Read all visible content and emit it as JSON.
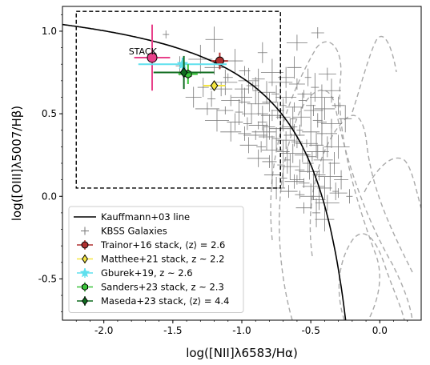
{
  "chart_data": {
    "type": "scatter",
    "xlabel": "log([NII]λ6583/Hα)",
    "ylabel": "log([OIII]λ5007/Hβ)",
    "xlim": [
      -2.3,
      0.3
    ],
    "ylim": [
      -0.75,
      1.15
    ],
    "x_ticks": [
      -2.0,
      -1.5,
      -1.0,
      -0.5,
      0.0
    ],
    "x_tick_labels": [
      "-2.0",
      "-1.5",
      "-1.0",
      "-0.5",
      "0.0"
    ],
    "y_ticks": [
      -0.5,
      0.0,
      0.5,
      1.0
    ],
    "y_tick_labels": [
      "-0.5",
      "0.0",
      "0.5",
      "1.0"
    ],
    "grid": false,
    "legend_position": "bottom-left",
    "kauffmann_line": {
      "name": "Kauffmann+03 line",
      "color": "#000000"
    },
    "selection_box": {
      "x": [
        -2.2,
        -0.72
      ],
      "y": [
        0.05,
        1.12
      ]
    },
    "annotations": [
      {
        "text": "STACK",
        "x": -1.82,
        "y": 0.86
      }
    ],
    "kbss": {
      "name": "KBSS Galaxies",
      "color": "#777777",
      "points": [
        [
          -1.55,
          0.98
        ],
        [
          -1.2,
          0.95
        ],
        [
          -0.85,
          0.87
        ],
        [
          -0.6,
          0.93
        ],
        [
          -0.45,
          0.99
        ],
        [
          -1.3,
          0.83
        ],
        [
          -1.05,
          0.82
        ],
        [
          -1.45,
          0.79
        ],
        [
          -1.2,
          0.78
        ],
        [
          -0.98,
          0.76
        ],
        [
          -0.78,
          0.75
        ],
        [
          -0.62,
          0.78
        ],
        [
          -0.52,
          0.72
        ],
        [
          -0.38,
          0.74
        ],
        [
          -1.1,
          0.72
        ],
        [
          -0.95,
          0.7
        ],
        [
          -0.88,
          0.71
        ],
        [
          -0.72,
          0.69
        ],
        [
          -0.6,
          0.68
        ],
        [
          -0.47,
          0.66
        ],
        [
          -0.35,
          0.64
        ],
        [
          -1.28,
          0.66
        ],
        [
          -1.15,
          0.65
        ],
        [
          -1.0,
          0.65
        ],
        [
          -0.9,
          0.64
        ],
        [
          -0.82,
          0.63
        ],
        [
          -0.75,
          0.62
        ],
        [
          -0.68,
          0.6
        ],
        [
          -0.55,
          0.62
        ],
        [
          -0.42,
          0.6
        ],
        [
          -1.35,
          0.6
        ],
        [
          -1.22,
          0.59
        ],
        [
          -1.08,
          0.58
        ],
        [
          -0.98,
          0.57
        ],
        [
          -0.88,
          0.56
        ],
        [
          -0.8,
          0.57
        ],
        [
          -0.7,
          0.55
        ],
        [
          -0.62,
          0.54
        ],
        [
          -0.5,
          0.55
        ],
        [
          -0.4,
          0.53
        ],
        [
          -0.3,
          0.55
        ],
        [
          -1.25,
          0.53
        ],
        [
          -1.12,
          0.52
        ],
        [
          -1.02,
          0.51
        ],
        [
          -0.93,
          0.5
        ],
        [
          -0.85,
          0.5
        ],
        [
          -0.78,
          0.49
        ],
        [
          -0.7,
          0.48
        ],
        [
          -0.63,
          0.47
        ],
        [
          -0.57,
          0.48
        ],
        [
          -0.45,
          0.46
        ],
        [
          -0.35,
          0.44
        ],
        [
          -0.25,
          0.47
        ],
        [
          -1.18,
          0.46
        ],
        [
          -1.05,
          0.45
        ],
        [
          -0.96,
          0.44
        ],
        [
          -0.88,
          0.43
        ],
        [
          -0.8,
          0.42
        ],
        [
          -0.72,
          0.41
        ],
        [
          -0.65,
          0.42
        ],
        [
          -0.58,
          0.4
        ],
        [
          -0.5,
          0.39
        ],
        [
          -0.42,
          0.38
        ],
        [
          -1.08,
          0.39
        ],
        [
          -0.98,
          0.38
        ],
        [
          -0.9,
          0.37
        ],
        [
          -0.82,
          0.36
        ],
        [
          -0.75,
          0.35
        ],
        [
          -0.68,
          0.34
        ],
        [
          -0.6,
          0.33
        ],
        [
          -0.53,
          0.32
        ],
        [
          -0.46,
          0.31
        ],
        [
          -0.38,
          0.3
        ],
        [
          -0.95,
          0.31
        ],
        [
          -0.86,
          0.3
        ],
        [
          -0.78,
          0.28
        ],
        [
          -0.7,
          0.27
        ],
        [
          -0.63,
          0.26
        ],
        [
          -0.56,
          0.25
        ],
        [
          -0.49,
          0.24
        ],
        [
          -0.41,
          0.22
        ],
        [
          -0.33,
          0.2
        ],
        [
          -0.88,
          0.23
        ],
        [
          -0.8,
          0.21
        ],
        [
          -0.72,
          0.19
        ],
        [
          -0.65,
          0.18
        ],
        [
          -0.58,
          0.16
        ],
        [
          -0.51,
          0.15
        ],
        [
          -0.44,
          0.13
        ],
        [
          -0.36,
          0.12
        ],
        [
          -0.78,
          0.13
        ],
        [
          -0.7,
          0.11
        ],
        [
          -0.62,
          0.09
        ],
        [
          -0.55,
          0.08
        ],
        [
          -0.48,
          0.06
        ],
        [
          -0.4,
          0.05
        ],
        [
          -0.32,
          0.03
        ],
        [
          -0.66,
          0.03
        ],
        [
          -0.58,
          0.01
        ],
        [
          -0.5,
          0.0
        ],
        [
          -0.44,
          -0.02
        ],
        [
          -0.38,
          -0.04
        ],
        [
          -0.55,
          -0.07
        ],
        [
          -0.46,
          -0.1
        ],
        [
          -0.4,
          -0.14
        ],
        [
          -0.52,
          0.2
        ],
        [
          -0.45,
          0.27
        ],
        [
          -0.6,
          0.1
        ],
        [
          -0.67,
          0.22
        ],
        [
          -0.75,
          0.05
        ],
        [
          -0.85,
          0.45
        ],
        [
          -1.0,
          0.6
        ],
        [
          -0.92,
          0.67
        ],
        [
          -1.12,
          0.69
        ],
        [
          -0.68,
          0.72
        ],
        [
          -0.56,
          0.58
        ],
        [
          -0.48,
          0.52
        ],
        [
          -0.35,
          0.38
        ],
        [
          -0.3,
          0.3
        ],
        [
          -0.28,
          0.1
        ],
        [
          -0.22,
          0.0
        ],
        [
          -0.3,
          0.02
        ],
        [
          -0.42,
          0.45
        ],
        [
          -0.62,
          0.37
        ],
        [
          -0.74,
          0.52
        ],
        [
          -0.84,
          0.39
        ]
      ]
    },
    "stacks": [
      {
        "name": "STACK",
        "x": -1.65,
        "y": 0.84,
        "xerr": 0.13,
        "yerr": 0.2,
        "color": "#e8408a",
        "marker": "circle"
      },
      {
        "name": "Trainor+16 stack, ⟨z⟩ = 2.6",
        "x": -1.16,
        "y": 0.82,
        "xerr": 0.06,
        "yerr": 0.05,
        "color": "#b03030",
        "marker": "circle"
      },
      {
        "name": "Matthee+21 stack, z ~ 2.2",
        "x": -1.2,
        "y": 0.67,
        "xerr": 0.08,
        "yerr": 0.03,
        "color": "#f5e642",
        "marker": "diamond"
      },
      {
        "name": "Gburek+19, z ~ 2.6",
        "x": -1.43,
        "y": 0.8,
        "xerr": 0.32,
        "yerr": 0.04,
        "color": "#5ee0ee",
        "marker": "star"
      },
      {
        "name": "Sanders+23 stack, z ~ 2.3",
        "x": -1.39,
        "y": 0.74,
        "xerr": 0.07,
        "yerr": 0.06,
        "color": "#3ac43a",
        "marker": "hexagon"
      },
      {
        "name": "Maseda+23 stack, ⟨z⟩ = 4.4",
        "x": -1.42,
        "y": 0.75,
        "xerr": 0.22,
        "yerr": 0.1,
        "color": "#0f6b1f",
        "marker": "diamond"
      }
    ],
    "legend": [
      {
        "label": "Kauffmann+03 line",
        "kind": "line",
        "color": "#000000"
      },
      {
        "label": "KBSS Galaxies",
        "kind": "plus",
        "color": "#777777"
      },
      {
        "label": "Trainor+16 stack, ⟨z⟩ = 2.6",
        "kind": "circle",
        "color": "#b03030"
      },
      {
        "label": "Matthee+21 stack, z ~ 2.2",
        "kind": "diamond",
        "color": "#f5e642"
      },
      {
        "label": "Gburek+19, z ~ 2.6",
        "kind": "star",
        "color": "#5ee0ee"
      },
      {
        "label": "Sanders+23 stack, z ~ 2.3",
        "kind": "hexagon",
        "color": "#3ac43a"
      },
      {
        "label": "Maseda+23 stack, ⟨z⟩ = 4.4",
        "kind": "diamond",
        "color": "#0f6b1f"
      }
    ]
  }
}
